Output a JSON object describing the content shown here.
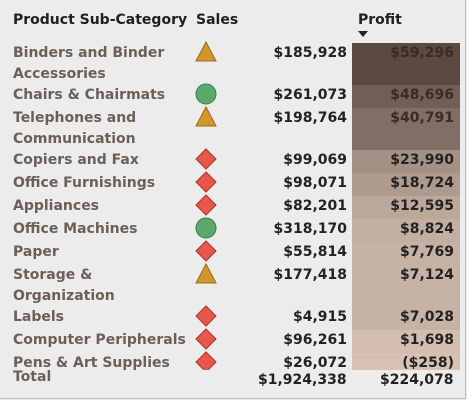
{
  "headers": {
    "category": "Product Sub-Category",
    "sales": "Sales",
    "profit": "Profit"
  },
  "rows": [
    {
      "category": "Binders and Binder Accessories",
      "sales": "$185,928",
      "profit": "$59,296",
      "indicator": "triangle-icon",
      "profit_share": 1.0
    },
    {
      "category": "Chairs & Chairmats",
      "sales": "$261,073",
      "profit": "$48,696",
      "indicator": "circle-icon",
      "profit_share": 0.82
    },
    {
      "category": "Telephones and Communication",
      "sales": "$198,764",
      "profit": "$40,791",
      "indicator": "triangle-icon",
      "profit_share": 0.69
    },
    {
      "category": "Copiers and Fax",
      "sales": "$99,069",
      "profit": "$23,990",
      "indicator": "diamond-icon",
      "profit_share": 0.4
    },
    {
      "category": "Office Furnishings",
      "sales": "$98,071",
      "profit": "$18,724",
      "indicator": "diamond-icon",
      "profit_share": 0.32
    },
    {
      "category": "Appliances",
      "sales": "$82,201",
      "profit": "$12,595",
      "indicator": "diamond-icon",
      "profit_share": 0.21
    },
    {
      "category": "Office Machines",
      "sales": "$318,170",
      "profit": "$8,824",
      "indicator": "circle-icon",
      "profit_share": 0.15
    },
    {
      "category": "Paper",
      "sales": "$55,814",
      "profit": "$7,769",
      "indicator": "diamond-icon",
      "profit_share": 0.13
    },
    {
      "category": "Storage & Organization",
      "sales": "$177,418",
      "profit": "$7,124",
      "indicator": "triangle-icon",
      "profit_share": 0.12
    },
    {
      "category": "Labels",
      "sales": "$4,915",
      "profit": "$7,028",
      "indicator": "diamond-icon",
      "profit_share": 0.12
    },
    {
      "category": "Computer Peripherals",
      "sales": "$96,261",
      "profit": "$1,698",
      "indicator": "diamond-icon",
      "profit_share": 0.03
    },
    {
      "category": "Pens & Art Supplies",
      "sales": "$26,072",
      "profit": "($258)",
      "indicator": "diamond-icon",
      "profit_share": 0.0
    }
  ],
  "total": {
    "label": "Total",
    "sales": "$1,924,338",
    "profit": "$224,078"
  },
  "colors": {
    "triangle": "#d4952a",
    "circle": "#5aa96a",
    "diamond": "#e8574c",
    "profit_dark": "#5a4a40",
    "profit_light": "#d6c1b3"
  }
}
